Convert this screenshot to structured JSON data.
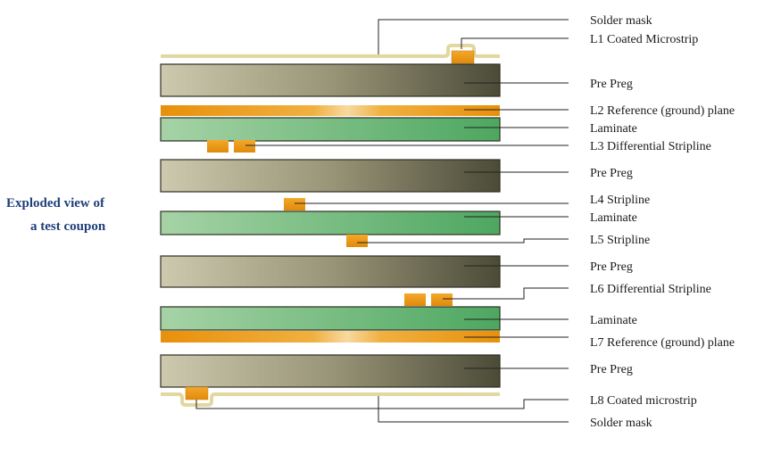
{
  "caption": {
    "line1": "Exploded view of",
    "line2": "a test coupon"
  },
  "labels": {
    "solder_mask_top": "Solder mask",
    "l1": "L1 Coated Microstrip",
    "prepreg_1": "Pre Preg",
    "l2": "L2 Reference (ground) plane",
    "laminate_1": "Laminate",
    "l3": "L3 Differential Stripline",
    "prepreg_2": "Pre Preg",
    "l4": "L4 Stripline",
    "laminate_2": "Laminate",
    "l5": "L5 Stripline",
    "prepreg_3": "Pre Preg",
    "l6": "L6 Differential Stripline",
    "laminate_3": "Laminate",
    "l7": "L7 Reference (ground) plane",
    "prepreg_4": "Pre Preg",
    "l8": "L8 Coated microstrip",
    "solder_mask_bottom": "Solder mask"
  },
  "colors": {
    "caption": "#1f3f7a",
    "copper": "#e8960f",
    "laminate": "#5aae6a",
    "prepreg_light": "#c9c5aa",
    "prepreg_dark": "#4a4a36",
    "solder_mask": "#e3d7a0"
  }
}
